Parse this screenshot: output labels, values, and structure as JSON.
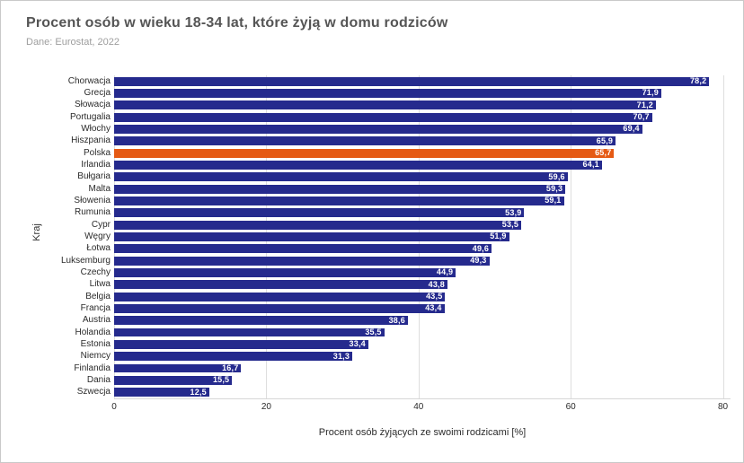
{
  "header": {
    "title": "Procent osób w wieku 18-34 lat, które żyją w domu rodziców",
    "subtitle": "Dane: Eurostat, 2022"
  },
  "chart_data": {
    "type": "bar",
    "orientation": "horizontal",
    "title": "Procent osób w wieku 18-34 lat, które żyją w domu rodziców",
    "subtitle": "Dane: Eurostat, 2022",
    "xlabel": "Procent osób żyjących ze swoimi rodzicami [%]",
    "ylabel": "Kraj",
    "xlim": [
      0,
      81
    ],
    "xticks": [
      0,
      20,
      40,
      60,
      80
    ],
    "grid": true,
    "legend": "none",
    "bar_color": "#252a8d",
    "highlight": {
      "category": "Polska",
      "index": 6,
      "color": "#e55a14"
    },
    "value_label_color": "#ffffff",
    "categories": [
      "Chorwacja",
      "Grecja",
      "Słowacja",
      "Portugalia",
      "Włochy",
      "Hiszpania",
      "Polska",
      "Irlandia",
      "Bułgaria",
      "Malta",
      "Słowenia",
      "Rumunia",
      "Cypr",
      "Węgry",
      "Łotwa",
      "Luksemburg",
      "Czechy",
      "Litwa",
      "Belgia",
      "Francja",
      "Austria",
      "Holandia",
      "Estonia",
      "Niemcy",
      "Finlandia",
      "Dania",
      "Szwecja"
    ],
    "values": [
      78.2,
      71.9,
      71.2,
      70.7,
      69.4,
      65.9,
      65.7,
      64.1,
      59.6,
      59.3,
      59.1,
      53.9,
      53.5,
      51.9,
      49.6,
      49.3,
      44.9,
      43.8,
      43.5,
      43.4,
      38.6,
      35.5,
      33.4,
      31.3,
      16.7,
      15.5,
      12.5
    ],
    "value_labels": [
      "78,2",
      "71,9",
      "71,2",
      "70,7",
      "69,4",
      "65,9",
      "65,7",
      "64,1",
      "59,6",
      "59,3",
      "59,1",
      "53,9",
      "53,5",
      "51,9",
      "49,6",
      "49,3",
      "44,9",
      "43,8",
      "43,5",
      "43,4",
      "38,6",
      "35,5",
      "33,4",
      "31,3",
      "16,7",
      "15,5",
      "12,5"
    ]
  }
}
